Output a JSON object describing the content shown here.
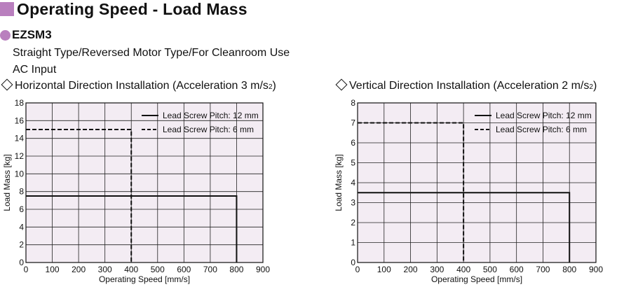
{
  "page": {
    "title": "Operating Speed - Load Mass"
  },
  "product": {
    "name": "EZSM3",
    "lines": [
      "Straight Type/Reversed Motor Type/For Cleanroom Use",
      "AC Input"
    ]
  },
  "colors": {
    "accent": "#b97fbe",
    "plot_background": "#f3ecf3",
    "line": "#111111"
  },
  "chart_titles": [
    {
      "prefix": "Horizontal Direction Installation (Acceleration 3 m/s",
      "sup": "2",
      "suffix": ")"
    },
    {
      "prefix": "Vertical Direction Installation (Acceleration 2 m/s",
      "sup": "2",
      "suffix": ")"
    }
  ],
  "chart_data": [
    {
      "type": "line",
      "title": "Horizontal Direction Installation (Acceleration 3 m/s²)",
      "xlabel": "Operating Speed [mm/s]",
      "ylabel": "Load Mass [kg]",
      "xlim": [
        0,
        900
      ],
      "ylim": [
        0,
        18
      ],
      "xticks": [
        0,
        100,
        200,
        300,
        400,
        500,
        600,
        700,
        800,
        900
      ],
      "yticks": [
        0,
        2,
        4,
        6,
        8,
        10,
        12,
        14,
        16,
        18
      ],
      "grid": true,
      "legend_position": "top-right",
      "series": [
        {
          "name": "Lead Screw Pitch: 12 mm",
          "style": "solid",
          "x": [
            0,
            800,
            800
          ],
          "y": [
            7.5,
            7.5,
            0
          ]
        },
        {
          "name": "Lead Screw Pitch: 6 mm",
          "style": "dashed",
          "x": [
            0,
            400,
            400
          ],
          "y": [
            15,
            15,
            0
          ]
        }
      ]
    },
    {
      "type": "line",
      "title": "Vertical Direction Installation (Acceleration 2 m/s²)",
      "xlabel": "Operating Speed [mm/s]",
      "ylabel": "Load Mass [kg]",
      "xlim": [
        0,
        900
      ],
      "ylim": [
        0,
        8
      ],
      "xticks": [
        0,
        100,
        200,
        300,
        400,
        500,
        600,
        700,
        800,
        900
      ],
      "yticks": [
        0,
        1,
        2,
        3,
        4,
        5,
        6,
        7,
        8
      ],
      "grid": true,
      "legend_position": "top-right",
      "series": [
        {
          "name": "Lead Screw Pitch: 12 mm",
          "style": "solid",
          "x": [
            0,
            800,
            800
          ],
          "y": [
            3.5,
            3.5,
            0
          ]
        },
        {
          "name": "Lead Screw Pitch: 6 mm",
          "style": "dashed",
          "x": [
            0,
            400,
            400
          ],
          "y": [
            7,
            7,
            0
          ]
        }
      ]
    }
  ]
}
